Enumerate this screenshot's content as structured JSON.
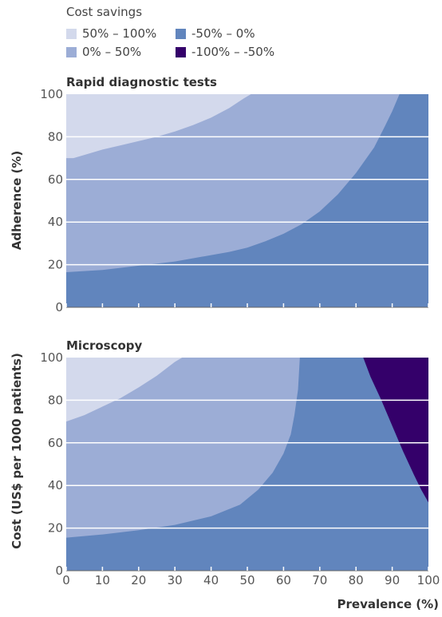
{
  "legend": {
    "title": "Cost savings",
    "items": [
      {
        "label": "50% – 100%",
        "color": "#d3d9ec"
      },
      {
        "label": "0% – 50%",
        "color": "#9cadd6"
      },
      {
        "label": "-50% – 0%",
        "color": "#6185bd"
      },
      {
        "label": "-100% – -50%",
        "color": "#34006a"
      }
    ]
  },
  "xlabel": "Prevalence (%)",
  "chart_data": [
    {
      "type": "area",
      "title": "Rapid diagnostic tests",
      "ylabel": "Adherence (%)",
      "xlim": [
        0,
        100
      ],
      "ylim": [
        0,
        100
      ],
      "x_ticks": [
        "0",
        "10",
        "20",
        "30",
        "40",
        "50",
        "60",
        "70",
        "80",
        "90",
        "100"
      ],
      "y_ticks": [
        "0",
        "20",
        "40",
        "60",
        "80",
        "100"
      ],
      "regions": [
        {
          "name": "50% – 100%",
          "color": "#d3d9ec",
          "boundary": [
            [
              0,
              70
            ],
            [
              2,
              70
            ],
            [
              5,
              71.5
            ],
            [
              10,
              74
            ],
            [
              15,
              76
            ],
            [
              20,
              78
            ],
            [
              25,
              80
            ],
            [
              30,
              82.5
            ],
            [
              35,
              85.5
            ],
            [
              40,
              89
            ],
            [
              45,
              93.5
            ],
            [
              49,
              98
            ],
            [
              51,
              100
            ]
          ]
        },
        {
          "name": "0% – 50%",
          "color": "#9cadd6",
          "boundary": [
            [
              92,
              100
            ],
            [
              90,
              92
            ],
            [
              88,
              85
            ],
            [
              85,
              75
            ],
            [
              80,
              63
            ],
            [
              75,
              53
            ],
            [
              70,
              45
            ],
            [
              65,
              39
            ],
            [
              60,
              34.5
            ],
            [
              55,
              31
            ],
            [
              50,
              28
            ],
            [
              45,
              26
            ],
            [
              40,
              24.5
            ],
            [
              30,
              21.5
            ],
            [
              20,
              19.5
            ],
            [
              10,
              17.5
            ],
            [
              0,
              16.5
            ]
          ]
        },
        {
          "name": "-50% – 0%",
          "color": "#6185bd"
        }
      ]
    },
    {
      "type": "area",
      "title": "Microscopy",
      "ylabel": "Cost (US$ per 1000 patients)",
      "xlim": [
        0,
        100
      ],
      "ylim": [
        0,
        100
      ],
      "x_ticks": [
        "0",
        "10",
        "20",
        "30",
        "40",
        "50",
        "60",
        "70",
        "80",
        "90",
        "100"
      ],
      "y_ticks": [
        "0",
        "20",
        "40",
        "60",
        "80",
        "100"
      ],
      "regions": [
        {
          "name": "50% – 100%",
          "color": "#d3d9ec",
          "boundary": [
            [
              0,
              70
            ],
            [
              5,
              73
            ],
            [
              10,
              77
            ],
            [
              15,
              81
            ],
            [
              20,
              86
            ],
            [
              25,
              91.5
            ],
            [
              30,
              98
            ],
            [
              32,
              100
            ]
          ]
        },
        {
          "name": "0% – 50%",
          "color": "#9cadd6",
          "boundary": [
            [
              64.5,
              100
            ],
            [
              64,
              85
            ],
            [
              63,
              73
            ],
            [
              62,
              64
            ],
            [
              60,
              55
            ],
            [
              57,
              46
            ],
            [
              53,
              38
            ],
            [
              48,
              31
            ],
            [
              40,
              25.5
            ],
            [
              30,
              21.5
            ],
            [
              20,
              19
            ],
            [
              10,
              17
            ],
            [
              0,
              15.5
            ]
          ]
        },
        {
          "name": "-50% – 0%",
          "color": "#6185bd"
        },
        {
          "name": "-100% – -50%",
          "color": "#34006a",
          "boundary": [
            [
              82,
              100
            ],
            [
              84,
              91
            ],
            [
              87,
              80
            ],
            [
              90,
              68
            ],
            [
              93,
              56
            ],
            [
              96,
              45
            ],
            [
              98,
              38
            ],
            [
              100,
              32
            ]
          ]
        }
      ]
    }
  ]
}
